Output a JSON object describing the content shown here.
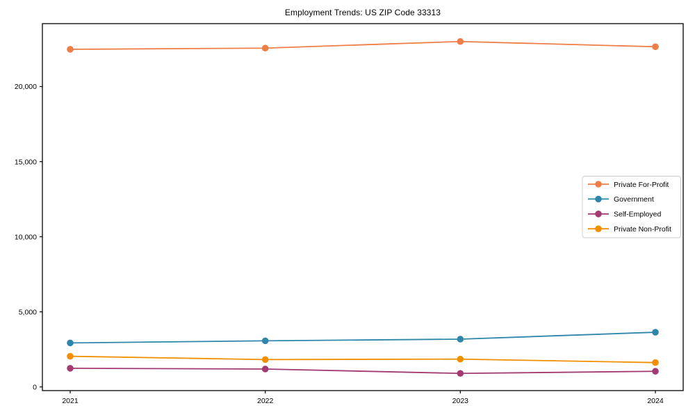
{
  "chart_data": {
    "type": "line",
    "title": "Employment Trends: US ZIP Code 33313",
    "xlabel": "",
    "ylabel": "",
    "x_labels": [
      "2021",
      "2022",
      "2023",
      "2024"
    ],
    "series": [
      {
        "name": "Private For-Profit",
        "color": "#ee7d46",
        "values": [
          22480,
          22560,
          23000,
          22650
        ]
      },
      {
        "name": "Government",
        "color": "#2e86ab",
        "values": [
          2930,
          3070,
          3180,
          3640
        ]
      },
      {
        "name": "Self-Employed",
        "color": "#a23b72",
        "values": [
          1240,
          1190,
          900,
          1040
        ]
      },
      {
        "name": "Private Non-Profit",
        "color": "#f18f01",
        "values": [
          2040,
          1820,
          1850,
          1620
        ]
      }
    ],
    "yticks": [
      0,
      5000,
      10000,
      15000,
      20000
    ],
    "ytick_labels": [
      "0",
      "5,000",
      "10,000",
      "15,000",
      "20,000"
    ],
    "ylim": [
      0,
      24200
    ],
    "grid": false,
    "legend_position": "center-right",
    "marker": "circle",
    "frame_color": "#000000",
    "text_color": "#000000",
    "legend_border_color": "#cccccc",
    "background_color": "#ffffff"
  }
}
